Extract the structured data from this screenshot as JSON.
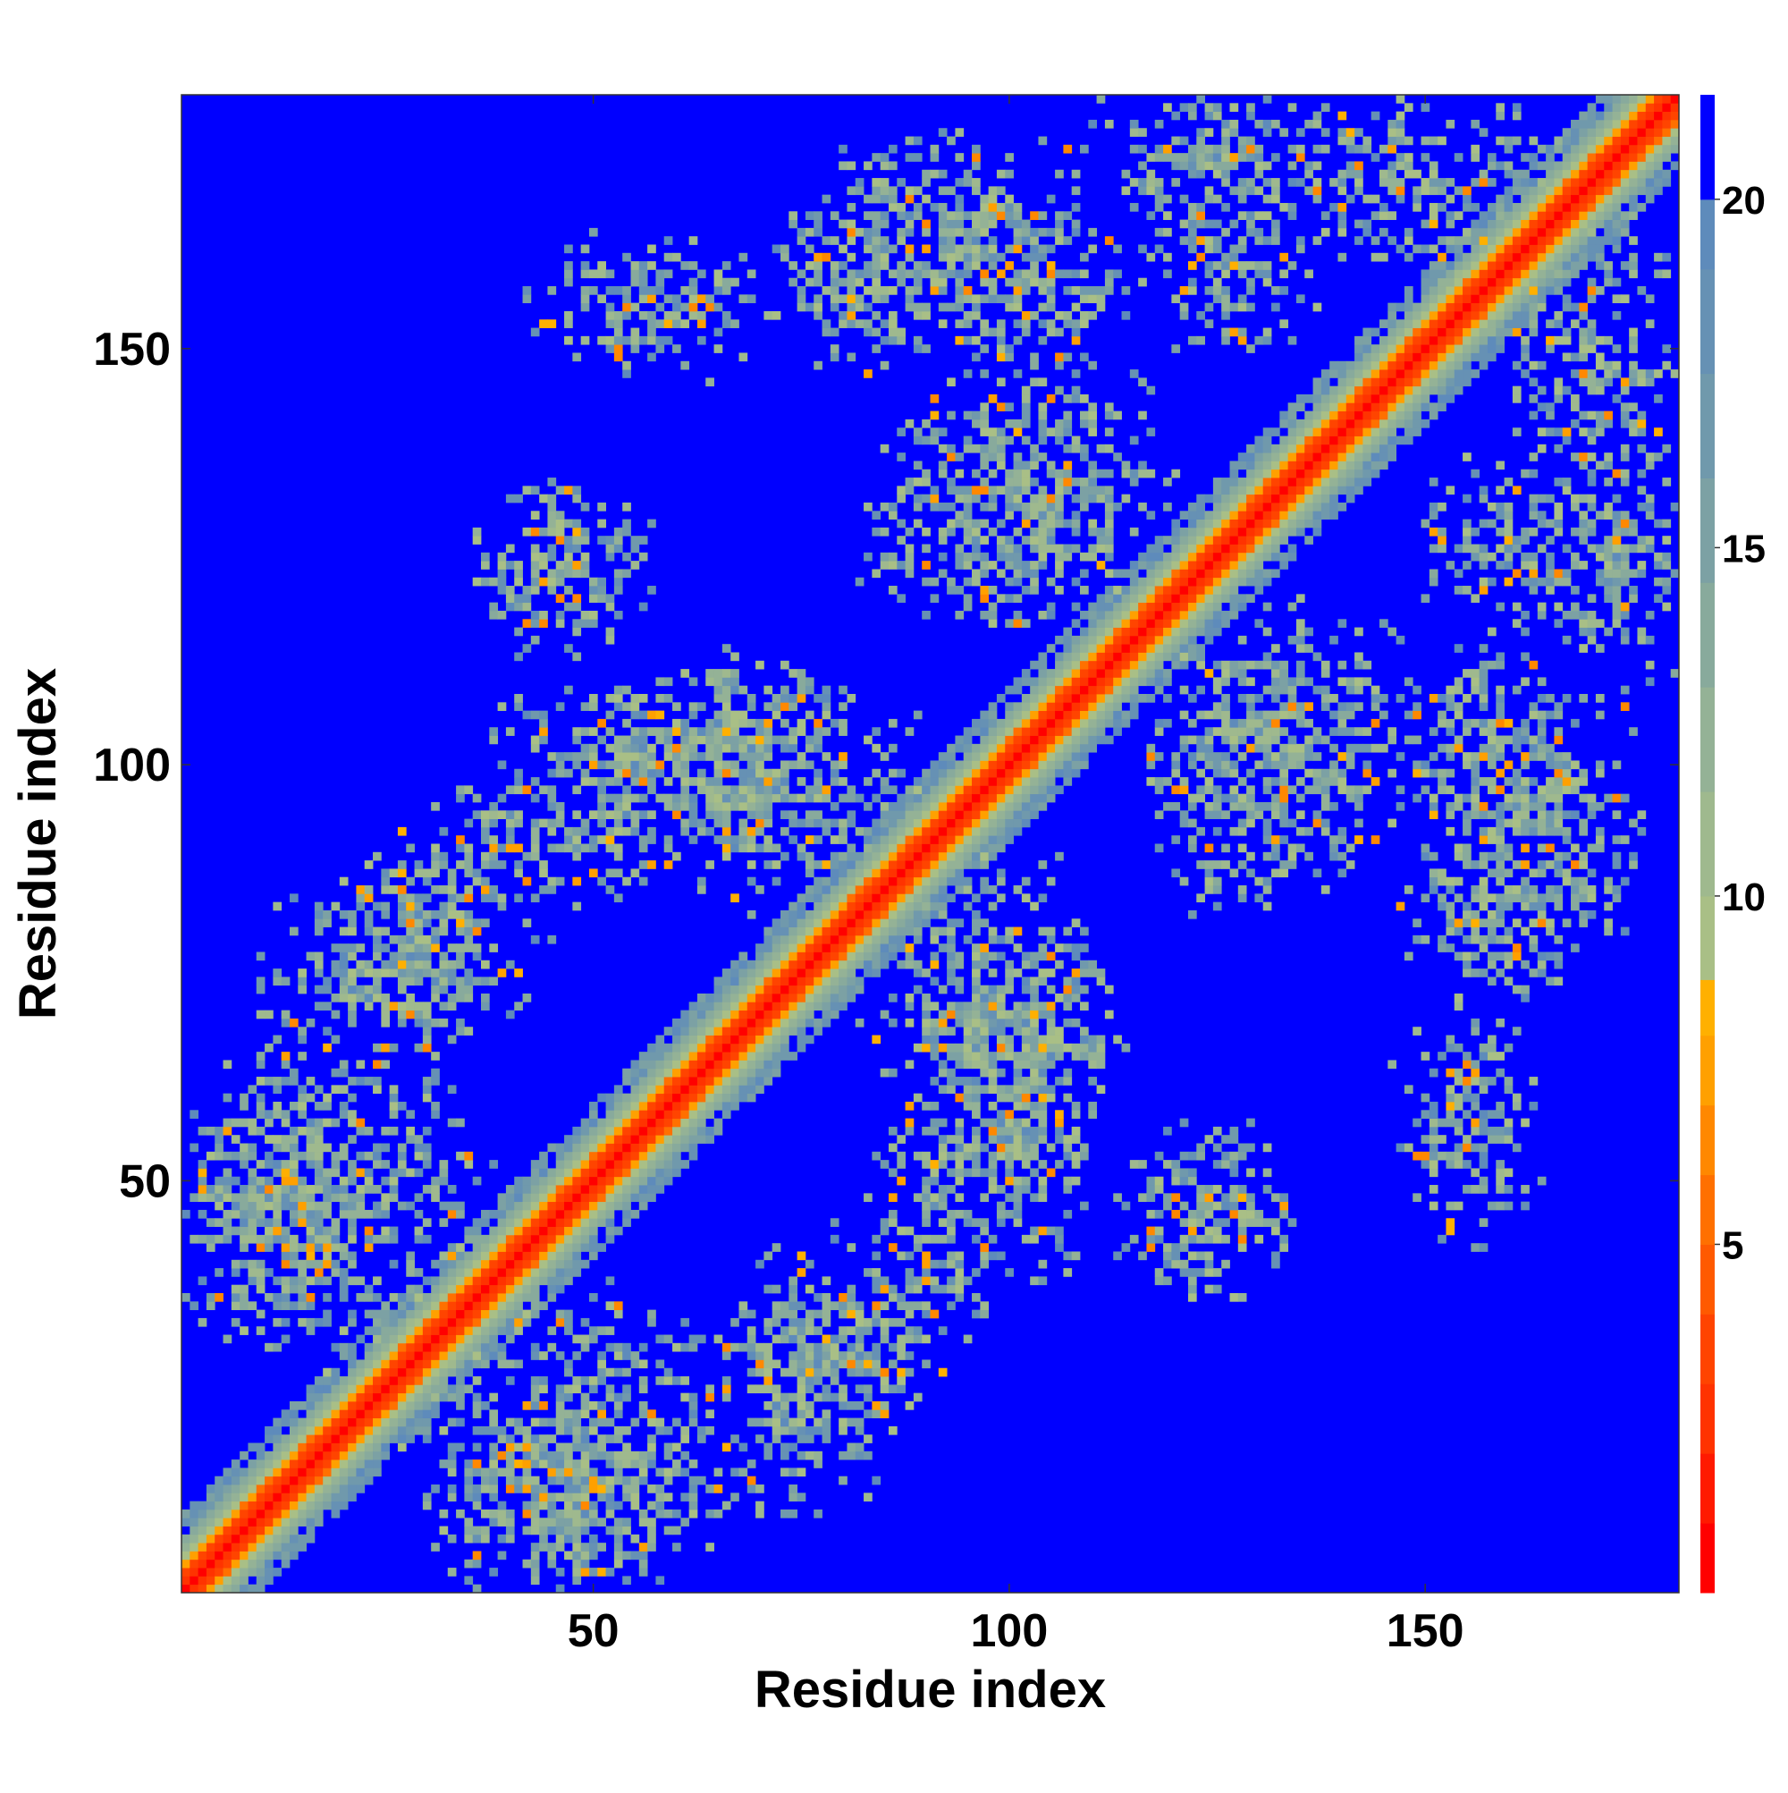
{
  "chart_data": {
    "type": "heatmap",
    "title": "",
    "xlabel": "Residue index",
    "ylabel": "Residue index",
    "n_residues": 180,
    "xlim": [
      0.5,
      180.5
    ],
    "ylim": [
      0.5,
      180.5
    ],
    "x_ticks": [
      50,
      100,
      150
    ],
    "y_ticks": [
      50,
      100,
      150
    ],
    "colorbar": {
      "ticks": [
        5,
        10,
        15,
        20
      ],
      "range": [
        0,
        21.5
      ],
      "levels": [
        {
          "max": 1.0,
          "color": "#ff0000"
        },
        {
          "max": 2.0,
          "color": "#ff1a00"
        },
        {
          "max": 3.0,
          "color": "#ff3300"
        },
        {
          "max": 4.0,
          "color": "#ff4400"
        },
        {
          "max": 5.0,
          "color": "#ff5a00"
        },
        {
          "max": 6.0,
          "color": "#ff7000"
        },
        {
          "max": 7.0,
          "color": "#ff8800"
        },
        {
          "max": 8.0,
          "color": "#ffa000"
        },
        {
          "max": 8.8,
          "color": "#ffb000"
        },
        {
          "max": 10.0,
          "color": "#a9bf86"
        },
        {
          "max": 11.5,
          "color": "#9fb98e"
        },
        {
          "max": 13.0,
          "color": "#94b296"
        },
        {
          "max": 14.5,
          "color": "#88aa9c"
        },
        {
          "max": 16.0,
          "color": "#7ca1a4"
        },
        {
          "max": 17.5,
          "color": "#7099ac"
        },
        {
          "max": 19.0,
          "color": "#6691b4"
        },
        {
          "max": 20.0,
          "color": "#5e8bbb"
        },
        {
          "max": 21.5,
          "color": "#0000ff"
        }
      ],
      "background_color": "#0000ff"
    },
    "diagonal_band": {
      "red_max_offset": 2,
      "orange_offset": 3,
      "olive_offset": 4,
      "gray_offsets": [
        5,
        6
      ]
    },
    "contact_clusters": [
      {
        "x": [
          1,
          22
        ],
        "y": [
          32,
          62
        ],
        "density": 0.75
      },
      {
        "x": [
          12,
          35
        ],
        "y": [
          65,
          85
        ],
        "density": 0.7
      },
      {
        "x": [
          30,
          55
        ],
        "y": [
          85,
          98
        ],
        "density": 0.65
      },
      {
        "x": [
          40,
          60
        ],
        "y": [
          98,
          108
        ],
        "density": 0.55
      },
      {
        "x": [
          38,
          55
        ],
        "y": [
          116,
          132
        ],
        "density": 0.5
      },
      {
        "x": [
          45,
          70
        ],
        "y": [
          148,
          162
        ],
        "density": 0.35
      },
      {
        "x": [
          75,
          95
        ],
        "y": [
          150,
          172
        ],
        "density": 0.6
      },
      {
        "x": [
          85,
          110
        ],
        "y": [
          118,
          135
        ],
        "density": 0.6
      },
      {
        "x": [
          55,
          80
        ],
        "y": [
          92,
          112
        ],
        "density": 0.65
      },
      {
        "x": [
          85,
          105
        ],
        "y": [
          158,
          175
        ],
        "density": 0.6
      },
      {
        "x": [
          110,
          140
        ],
        "y": [
          168,
          180
        ],
        "density": 0.6
      },
      {
        "x": [
          30,
          65
        ],
        "y": [
          5,
          35
        ],
        "density": 0.7
      },
      {
        "x": [
          70,
          90
        ],
        "y": [
          20,
          42
        ],
        "density": 0.65
      },
      {
        "x": [
          85,
          108
        ],
        "y": [
          45,
          90
        ],
        "density": 0.6
      },
      {
        "x": [
          115,
          130
        ],
        "y": [
          38,
          52
        ],
        "density": 0.45
      },
      {
        "x": [
          120,
          148
        ],
        "y": [
          88,
          118
        ],
        "density": 0.6
      },
      {
        "x": [
          148,
          165
        ],
        "y": [
          95,
          112
        ],
        "density": 0.65
      },
      {
        "x": [
          150,
          172
        ],
        "y": [
          118,
          135
        ],
        "density": 0.6
      },
      {
        "x": [
          150,
          165
        ],
        "y": [
          72,
          90
        ],
        "density": 0.4
      },
      {
        "x": [
          150,
          162
        ],
        "y": [
          45,
          65
        ],
        "density": 0.35
      },
      {
        "x": [
          160,
          180
        ],
        "y": [
          135,
          165
        ],
        "density": 0.55
      }
    ]
  }
}
